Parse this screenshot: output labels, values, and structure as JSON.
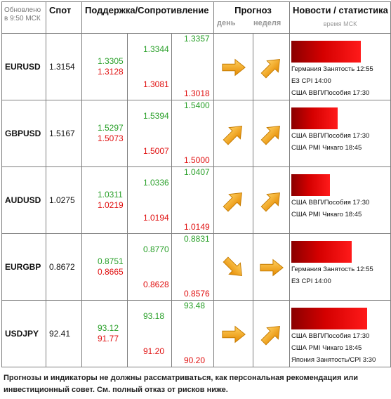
{
  "header": {
    "updated": "Обновлено в 9:50 МСК",
    "spot": "Спот",
    "support_resistance": "Поддержка/Сопротивление",
    "forecast": "Прогноз",
    "day": "день",
    "week": "неделя",
    "news": "Новости / статистика",
    "news_time": "время МСК"
  },
  "rows": [
    {
      "symbol": "EURUSD",
      "spot": "1.3154",
      "levels": {
        "c1_res": "1.3305",
        "c1_sup": "1.3128",
        "c2_res": "1.3344",
        "c2_sup": "1.3081",
        "c3_res": "1.3357",
        "c3_sup": "1.3018"
      },
      "forecast_day": "right-arrow",
      "forecast_week": "up-right-arrow",
      "impact": 0.72,
      "news": [
        "Германия Занятость 12:55",
        "ЕЗ CPI 14:00",
        "США ВВП/Пособия 17:30"
      ]
    },
    {
      "symbol": "GBPUSD",
      "spot": "1.5167",
      "levels": {
        "c1_res": "1.5297",
        "c1_sup": "1.5073",
        "c2_res": "1.5394",
        "c2_sup": "1.5007",
        "c3_res": "1.5400",
        "c3_sup": "1.5000"
      },
      "forecast_day": "up-right-arrow",
      "forecast_week": "up-right-arrow",
      "impact": 0.48,
      "news": [
        "США ВВП/Пособия 17:30",
        "США PMI Чикаго 18:45"
      ]
    },
    {
      "symbol": "AUDUSD",
      "spot": "1.0275",
      "levels": {
        "c1_res": "1.0311",
        "c1_sup": "1.0219",
        "c2_res": "1.0336",
        "c2_sup": "1.0194",
        "c3_res": "1.0407",
        "c3_sup": "1.0149"
      },
      "forecast_day": "up-right-arrow",
      "forecast_week": "up-right-arrow",
      "impact": 0.4,
      "news": [
        "США ВВП/Пособия 17:30",
        "США PMI Чикаго 18:45"
      ]
    },
    {
      "symbol": "EURGBP",
      "spot": "0.8672",
      "levels": {
        "c1_res": "0.8751",
        "c1_sup": "0.8665",
        "c2_res": "0.8770",
        "c2_sup": "0.8628",
        "c3_res": "0.8831",
        "c3_sup": "0.8576"
      },
      "forecast_day": "down-right-arrow",
      "forecast_week": "right-arrow",
      "impact": 0.62,
      "news": [
        "Германия Занятость 12:55",
        "ЕЗ CPI 14:00"
      ]
    },
    {
      "symbol": "USDJPY",
      "spot": "92.41",
      "levels": {
        "c1_res": "93.12",
        "c1_sup": "91.77",
        "c2_res": "93.18",
        "c2_sup": "91.20",
        "c3_res": "93.48",
        "c3_sup": "90.20"
      },
      "forecast_day": "right-arrow",
      "forecast_week": "up-right-arrow",
      "impact": 0.78,
      "news": [
        "США ВВП/Пособия 17:30",
        "США PMI Чикаго 18:45",
        "Япония Занятость/CPI 3:30"
      ]
    }
  ],
  "footer": "Прогнозы и индикаторы не должны рассматриваться, как персональная рекомендация или инвестиционный совет. См. полный отказ от рисков ниже.",
  "colors": {
    "support": "#2aa02a",
    "resistance": "#e01010",
    "arrow": "#f0a020",
    "impact_bar": "#e00000"
  }
}
